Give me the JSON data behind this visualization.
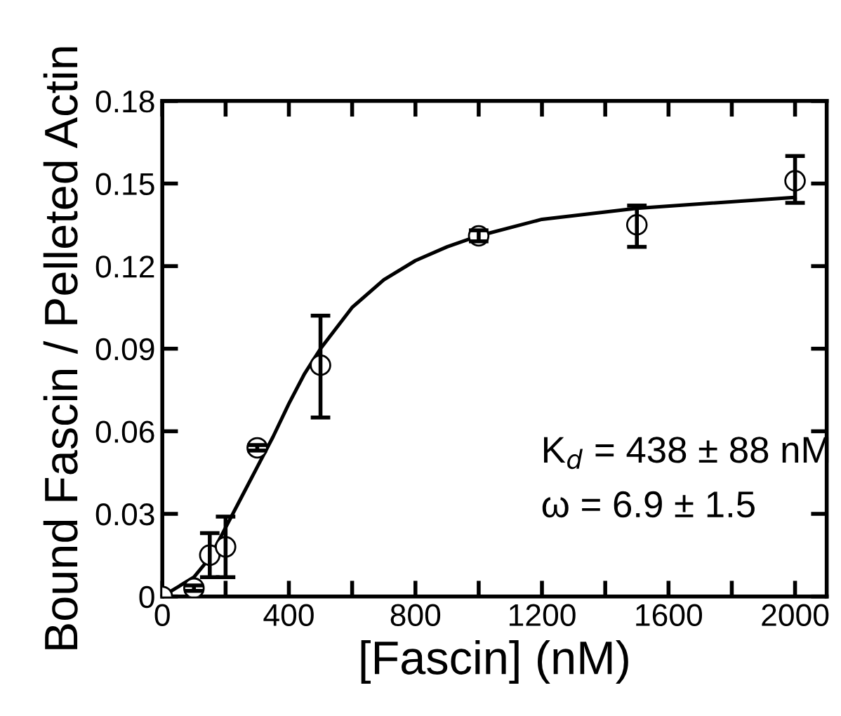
{
  "chart_data": {
    "type": "scatter",
    "xlabel": "[Fascin] (nM)",
    "ylabel": "Bound Fascin / Pelleted Actin",
    "xlim": [
      0,
      2100
    ],
    "ylim": [
      0,
      0.18
    ],
    "xticks": [
      0,
      {
        "value": 200,
        "label": null
      },
      400,
      {
        "value": 600,
        "label": null
      },
      800,
      {
        "value": 1000,
        "label": null
      },
      1200,
      {
        "value": 1400,
        "label": null
      },
      1600,
      {
        "value": 1800,
        "label": null
      },
      2000
    ],
    "yticks": [
      0,
      0.03,
      0.06,
      0.09,
      0.12,
      0.15,
      0.18
    ],
    "grid": false,
    "legend": false,
    "marker": "circle",
    "series": [
      {
        "color": "#000000",
        "x": [
          0,
          100,
          150,
          200,
          300,
          500,
          1000,
          1500,
          2000
        ],
        "values": [
          0,
          0.003,
          0.015,
          0.018,
          0.054,
          0.084,
          0.131,
          0.135,
          0.151
        ],
        "errors": [
          null,
          0.001,
          0.008,
          0.011,
          0.001,
          [
            0.065,
            0.102
          ],
          0.002,
          [
            0.127,
            0.142
          ],
          [
            0.143,
            0.16
          ]
        ]
      },
      {
        "type": "line",
        "color": "#000000",
        "marker": "none",
        "line_style": "solid",
        "x": [
          0,
          100,
          150,
          200,
          250,
          300,
          350,
          400,
          450,
          500,
          600,
          700,
          800,
          900,
          1000,
          1200,
          1500,
          2000
        ],
        "values": [
          0,
          0.007,
          0.014,
          0.025,
          0.036,
          0.047,
          0.058,
          0.07,
          0.081,
          0.09,
          0.105,
          0.115,
          0.122,
          0.127,
          0.131,
          0.137,
          0.141,
          0.145
        ]
      }
    ],
    "annotations": [
      "K$_{d}$ = 438 ± 88 nM",
      "ω = 6.9 ± 1.5"
    ]
  }
}
